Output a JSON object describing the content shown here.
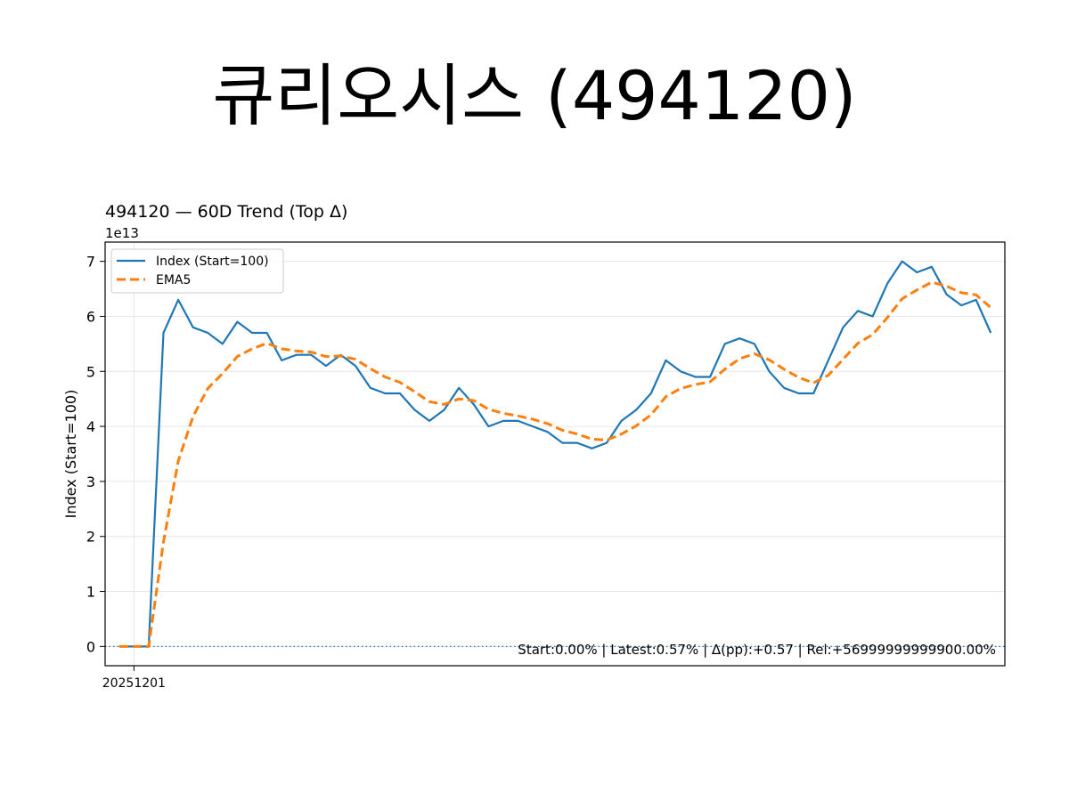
{
  "page": {
    "title": "큐리오시스 (494120)"
  },
  "chart_data": {
    "type": "line",
    "title": "494120 — 60D Trend (Top Δ)",
    "ylabel": "Index (Start=100)",
    "xlabel": "",
    "y_offset_label": "1e13",
    "y_scale": 10000000000000.0,
    "ylim": [
      -0.35,
      7.35
    ],
    "yticks": [
      0,
      1,
      2,
      3,
      4,
      5,
      6,
      7
    ],
    "xticks": [
      {
        "index": 1,
        "label": "20251201"
      }
    ],
    "grid": true,
    "legend": "top-left",
    "baseline": 0,
    "colors": {
      "index": "#1f77b4",
      "ema": "#ff7f0e",
      "baseline": "#1f77b4"
    },
    "series": [
      {
        "name": "Index (Start=100)",
        "style": "solid",
        "values": [
          0.0,
          0.0,
          0.0,
          5.7,
          6.3,
          5.8,
          5.7,
          5.5,
          5.9,
          5.7,
          5.7,
          5.2,
          5.3,
          5.3,
          5.1,
          5.3,
          5.1,
          4.7,
          4.6,
          4.6,
          4.3,
          4.1,
          4.3,
          4.7,
          4.4,
          4.0,
          4.1,
          4.1,
          4.0,
          3.9,
          3.7,
          3.7,
          3.6,
          3.7,
          4.1,
          4.3,
          4.6,
          5.2,
          5.0,
          4.9,
          4.9,
          5.5,
          5.6,
          5.5,
          5.0,
          4.7,
          4.6,
          4.6,
          5.2,
          5.8,
          6.1,
          6.0,
          6.6,
          7.0,
          6.8,
          6.9,
          6.4,
          6.2,
          6.3,
          5.7
        ]
      },
      {
        "name": "EMA5",
        "style": "dashed",
        "values": [
          0.0,
          0.0,
          0.0,
          1.9,
          3.37,
          4.18,
          4.69,
          4.96,
          5.27,
          5.41,
          5.51,
          5.41,
          5.37,
          5.35,
          5.27,
          5.28,
          5.22,
          5.05,
          4.9,
          4.8,
          4.63,
          4.45,
          4.4,
          4.5,
          4.47,
          4.31,
          4.24,
          4.19,
          4.13,
          4.05,
          3.93,
          3.86,
          3.77,
          3.75,
          3.86,
          4.01,
          4.21,
          4.54,
          4.69,
          4.76,
          4.81,
          5.04,
          5.23,
          5.32,
          5.21,
          5.04,
          4.89,
          4.79,
          4.93,
          5.22,
          5.51,
          5.67,
          5.98,
          6.32,
          6.48,
          6.62,
          6.55,
          6.43,
          6.39,
          6.16
        ]
      }
    ],
    "annotation": "Start:0.00% | Latest:0.57% | Δ(pp):+0.57 | Rel:+56999999999900.00%"
  }
}
